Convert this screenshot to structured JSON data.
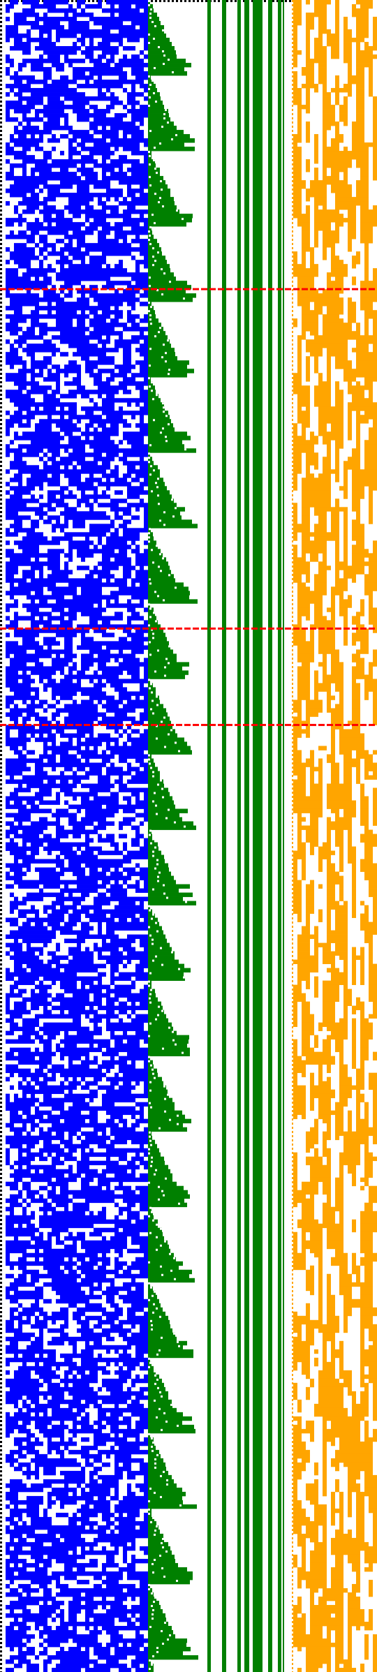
{
  "colors": {
    "background": "#ffffff",
    "border": "#000000",
    "left_panel": "#0000ff",
    "middle_panel": "#008000",
    "right_panel": "#ffa500",
    "markers": "#ff0000"
  },
  "grid": {
    "rows": 399,
    "left_columns": 34,
    "right_columns": 20,
    "stripe_count": 8
  },
  "density": {
    "left": 0.55,
    "right": 0.6
  },
  "marker_rows": [
    69,
    150,
    173
  ]
}
